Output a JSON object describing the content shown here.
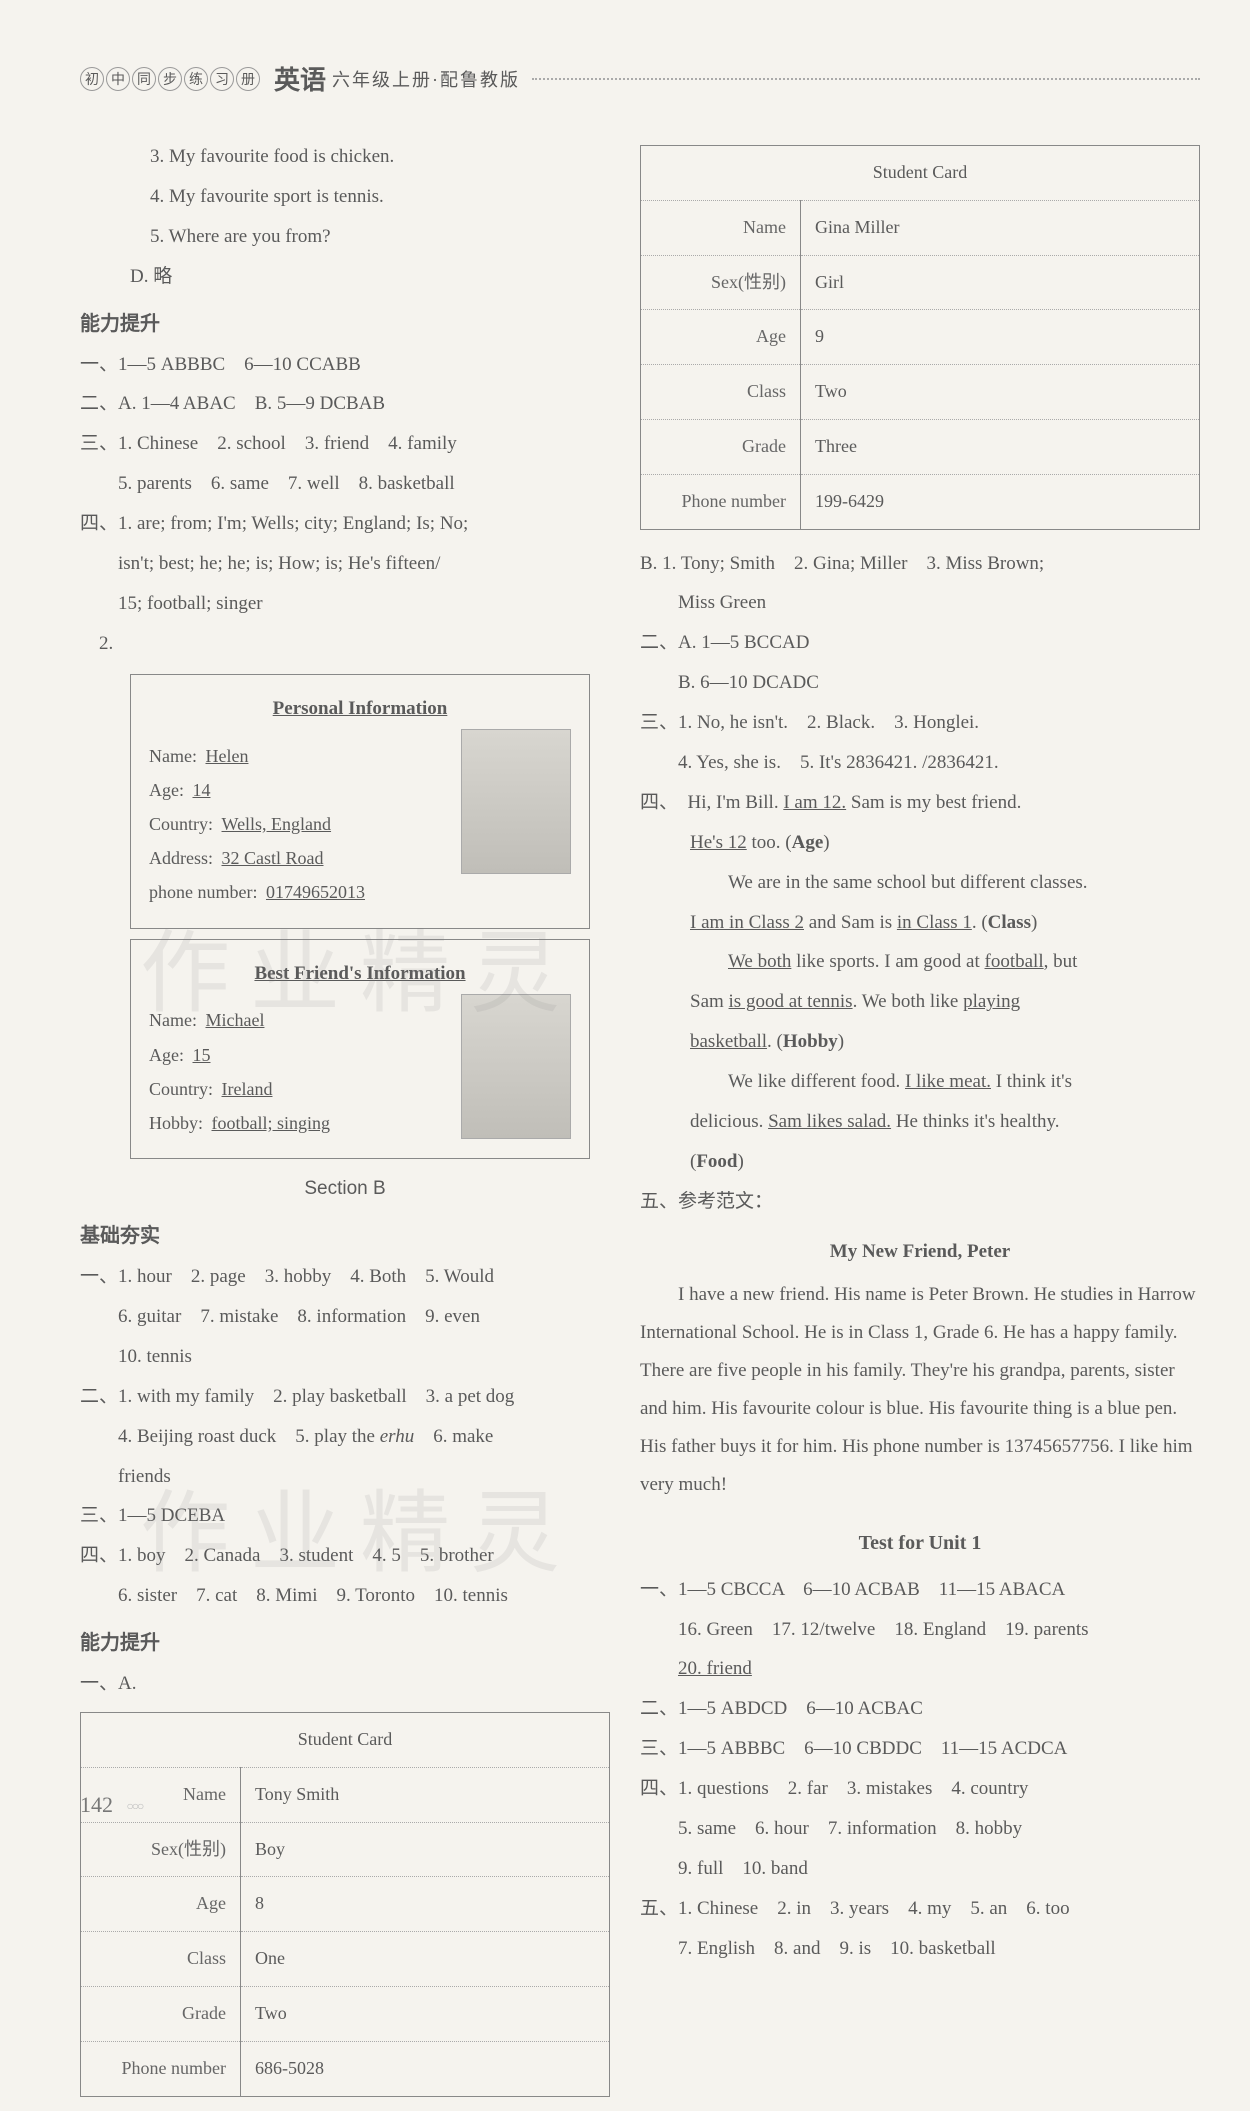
{
  "header": {
    "circles": [
      "初",
      "中",
      "同",
      "步",
      "练",
      "习",
      "册"
    ],
    "main": "英语",
    "sub": "六年级上册·配鲁教版"
  },
  "left": {
    "top_lines": [
      "3. My favourite food is chicken.",
      "4. My favourite sport is tennis.",
      "5. Where are you from?"
    ],
    "d_line": "D. 略",
    "nltc": "能力提升",
    "nl_lines": [
      "一、1—5 ABBBC　6—10 CCABB",
      "二、A. 1—4 ABAC　B. 5—9 DCBAB",
      "三、1. Chinese　2. school　3. friend　4. family",
      "　　5. parents　6. same　7. well　8. basketball",
      "四、1. are; from; I'm; Wells; city; England; Is; No;",
      "　　isn't; best; he; he; is; How; is; He's fifteen/",
      "　　15; football; singer",
      "　2."
    ],
    "card1": {
      "title": "Personal Information",
      "rows": {
        "name_label": "Name:",
        "name": "Helen",
        "age_label": "Age:",
        "age": "14",
        "country_label": "Country:",
        "country": "Wells, England",
        "address_label": "Address:",
        "address": "32 Castl Road",
        "phone_label": "phone number:",
        "phone": "01749652013"
      }
    },
    "card2": {
      "title": "Best Friend's Information",
      "rows": {
        "name_label": "Name:",
        "name": "Michael",
        "age_label": "Age:",
        "age": "15",
        "country_label": "Country:",
        "country": "Ireland",
        "hobby_label": "Hobby:",
        "hobby": "football; singing"
      }
    },
    "sectionB": "Section B",
    "jcgs": "基础夯实",
    "jc_lines": [
      "一、1. hour　2. page　3. hobby　4. Both　5. Would",
      "　　6. guitar　7. mistake　8. information　9. even",
      "　　10. tennis",
      "二、1. with my family　2. play basketball　3. a pet dog",
      "　　4. Beijing roast duck　5. play the erhu　6. make",
      "　　friends",
      "三、1—5 DCEBA",
      "四、1. boy　2. Canada　3. student　4. 5　5. brother",
      "　　6. sister　7. cat　8. Mimi　9. Toronto　10. tennis"
    ],
    "nltc2": "能力提升",
    "yi_a": "一、A.",
    "table1": {
      "caption": "Student Card",
      "rows": [
        [
          "Name",
          "Tony Smith"
        ],
        [
          "Sex(性别)",
          "Boy"
        ],
        [
          "Age",
          "8"
        ],
        [
          "Class",
          "One"
        ],
        [
          "Grade",
          "Two"
        ],
        [
          "Phone number",
          "686-5028"
        ]
      ]
    }
  },
  "right": {
    "table2": {
      "caption": "Student Card",
      "rows": [
        [
          "Name",
          "Gina Miller"
        ],
        [
          "Sex(性别)",
          "Girl"
        ],
        [
          "Age",
          "9"
        ],
        [
          "Class",
          "Two"
        ],
        [
          "Grade",
          "Three"
        ],
        [
          "Phone number",
          "199-6429"
        ]
      ]
    },
    "b_lines": [
      "B. 1. Tony; Smith　2. Gina; Miller　3. Miss Brown;",
      "　　Miss Green",
      "二、A. 1—5 BCCAD",
      "　　B. 6—10 DCADC",
      "三、1. No, he isn't.　2. Black.　3. Honglei.",
      "　　4. Yes, she is.　5. It's 2836421. /2836421."
    ],
    "four": {
      "prefix": "四、",
      "line1_a": "Hi, I'm Bill. ",
      "line1_u1": "I am 12.",
      "line1_b": " Sam is my best friend.",
      "line2_u": "He's 12",
      "line2_b": " too. (",
      "line2_bold": "Age",
      "line2_c": ")",
      "line3": "We are in the same school but different classes.",
      "line4_u1": "I am in Class 2",
      "line4_a": " and Sam is ",
      "line4_u2": "in Class 1",
      "line4_b": ". (",
      "line4_bold": "Class",
      "line4_c": ")",
      "line5_u1": "We both",
      "line5_a": " like sports. I am good at ",
      "line5_u2": "football",
      "line5_b": ", but",
      "line6_a": "Sam ",
      "line6_u1": "is good at tennis",
      "line6_b": ". We both like ",
      "line6_u2": "playing",
      "line7_u": "basketball",
      "line7_a": ". (",
      "line7_bold": "Hobby",
      "line7_b": ")",
      "line8_a": "We like different food. ",
      "line8_u1": "I like meat.",
      "line8_b": " I think it's",
      "line9_a": "delicious. ",
      "line9_u1": "Sam likes salad.",
      "line9_b": " He thinks it's healthy.",
      "line10_a": "(",
      "line10_bold": "Food",
      "line10_b": ")"
    },
    "five_label": "五、参考范文：",
    "essay_title": "My New Friend, Peter",
    "essay": "I have a new friend. His name is Peter Brown. He studies in Harrow International School. He is in Class 1, Grade 6. He has a happy family. There are five people in his family. They're his grandpa, parents, sister and him. His favourite colour is blue. His favourite thing is a blue pen. His father buys it for him. His phone number is 13745657756. I like him very much!",
    "test_title": "Test for Unit 1",
    "test_lines": [
      "一、1—5 CBCCA　6—10 ACBAB　11—15 ABACA",
      "　　16. Green　17. 12/twelve　18. England　19. parents",
      "　　20. friend",
      "二、1—5 ABDCD　6—10 ACBAC",
      "三、1—5 ABBBC　6—10 CBDDC　11—15 ACDCA",
      "四、1. questions　2. far　3. mistakes　4. country",
      "　　5. same　6. hour　7. information　8. hobby",
      "　　9. full　10. band",
      "五、1. Chinese　2. in　3. years　4. my　5. an　6. too",
      "　　7. English　8. and　9. is　10. basketball"
    ]
  },
  "pagenum": "142",
  "watermark": "作业精灵"
}
